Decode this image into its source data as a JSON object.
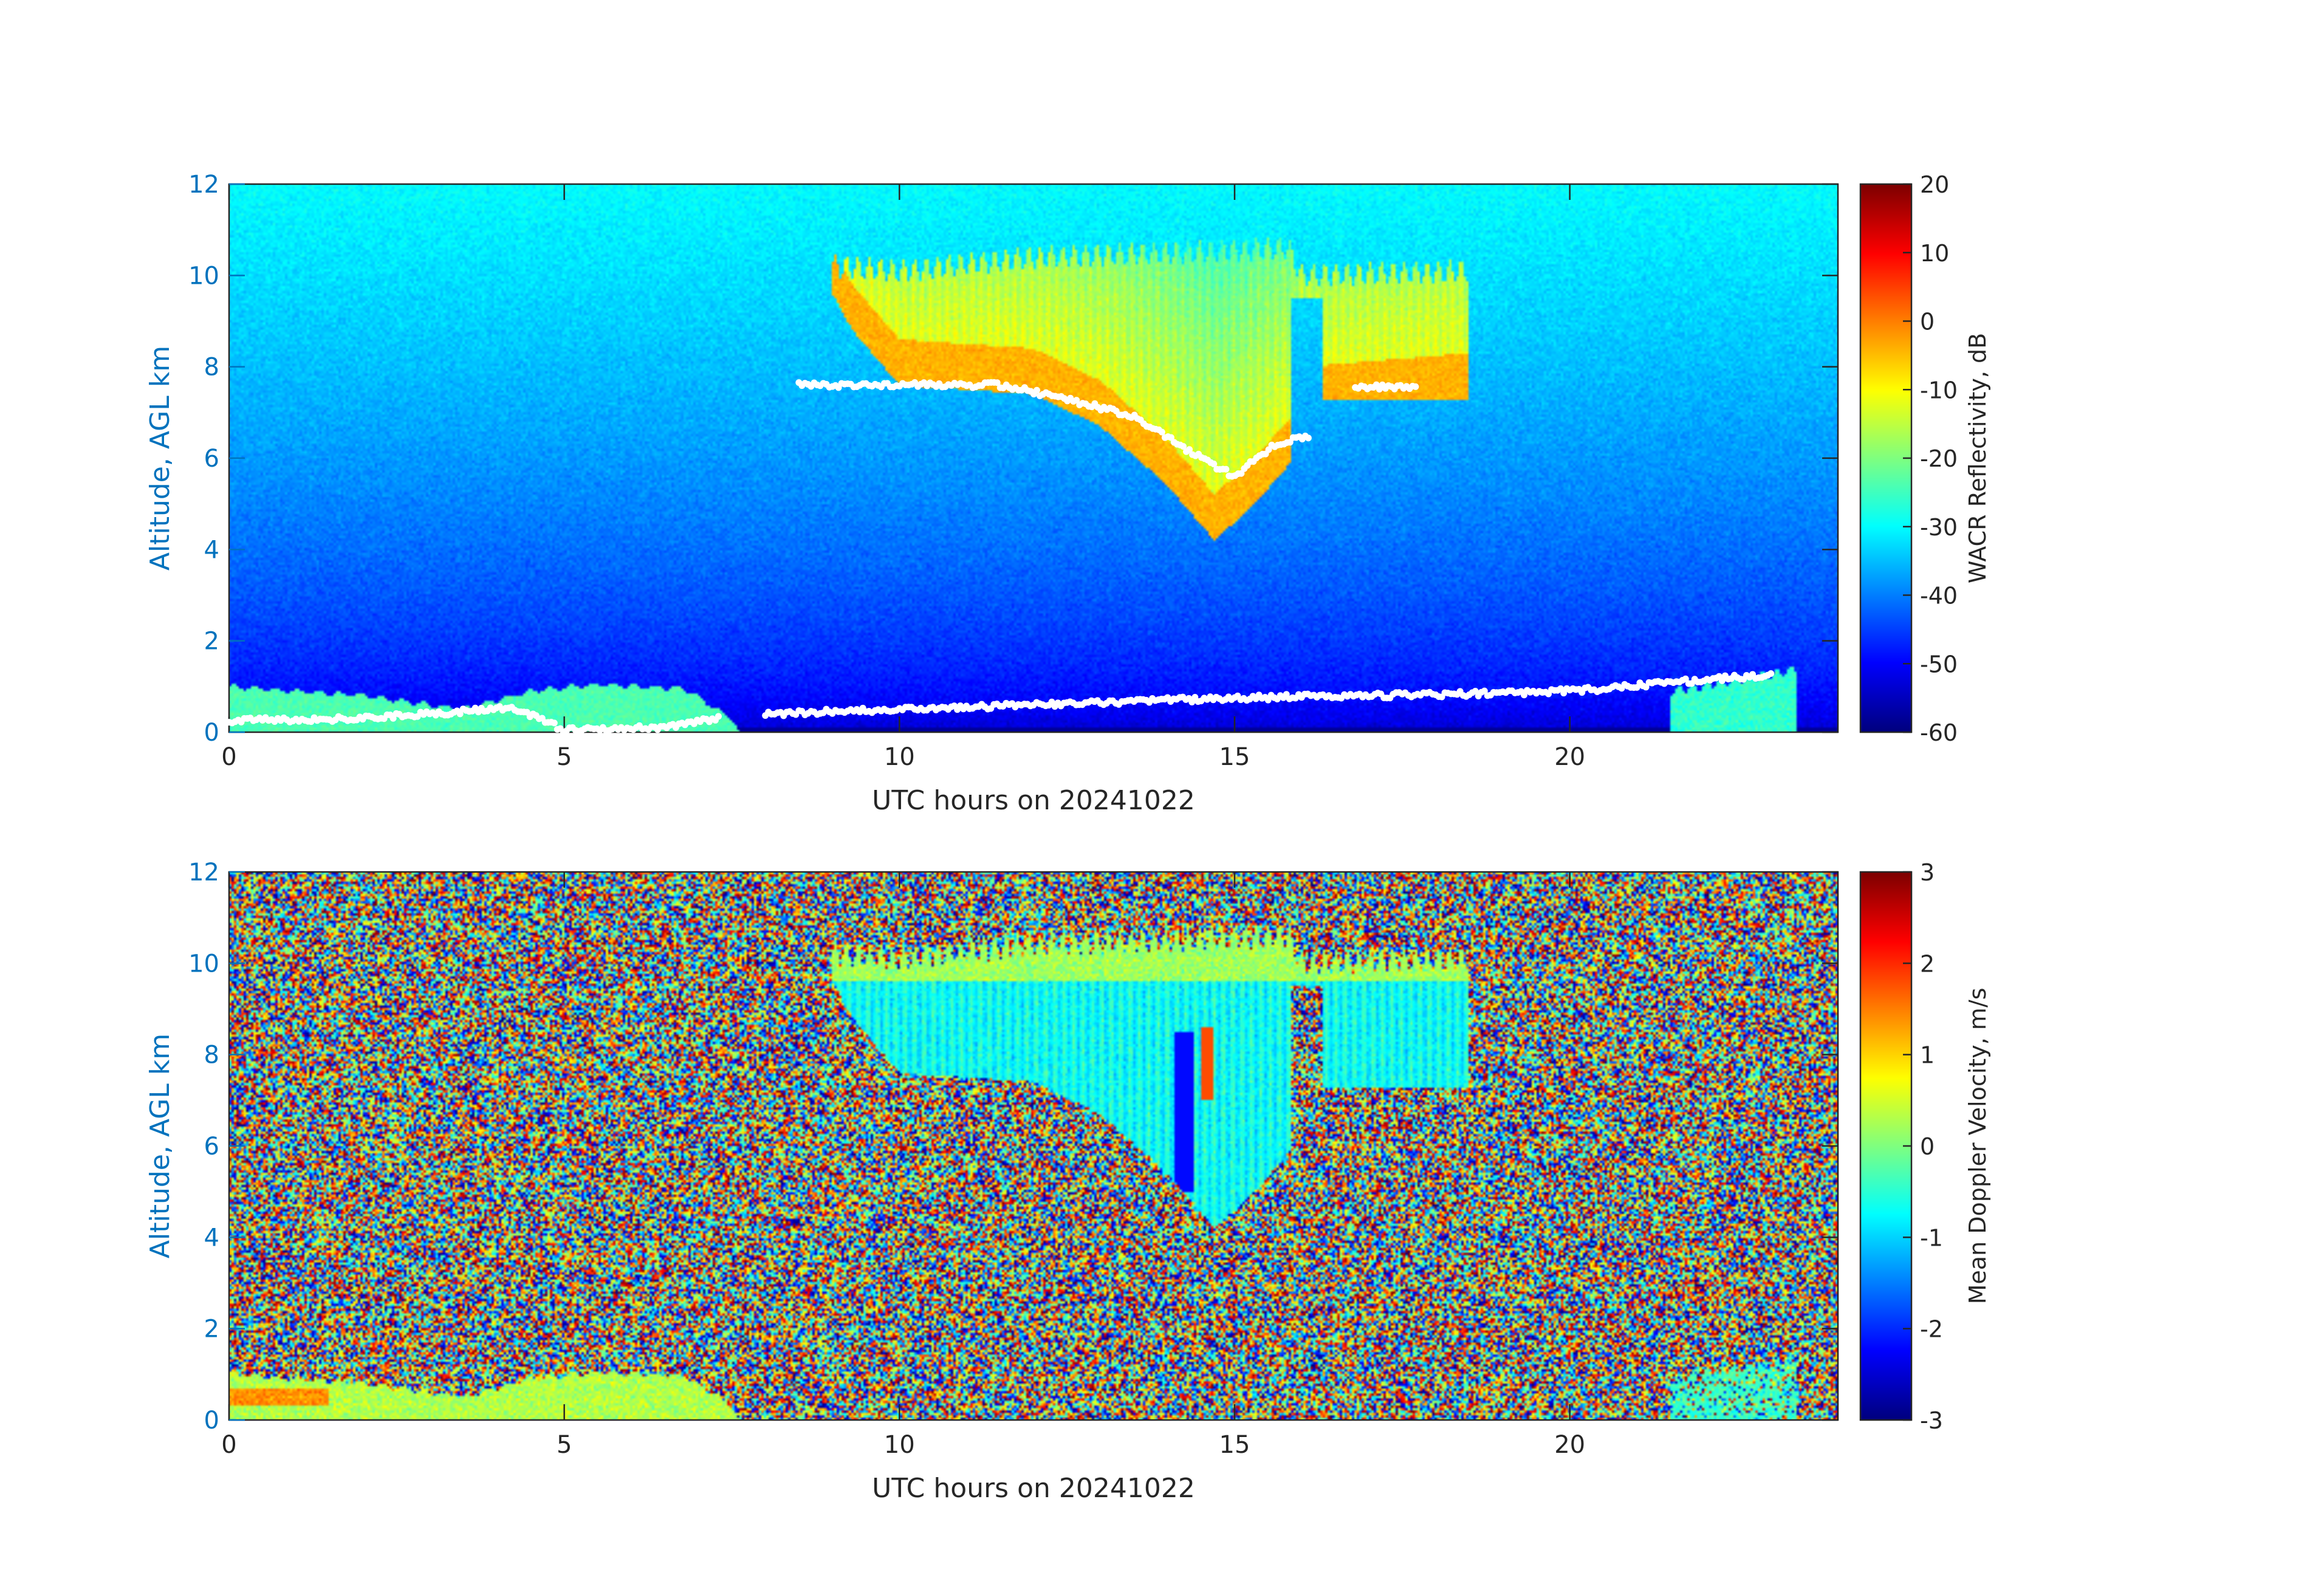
{
  "chart_data": [
    {
      "type": "heatmap",
      "title": "",
      "xlabel": "UTC hours on 20241022",
      "ylabel": "Altitude, AGL km",
      "xlim": [
        0,
        24
      ],
      "ylim": [
        0,
        12
      ],
      "xticks": [
        0,
        5,
        10,
        15,
        20
      ],
      "yticks": [
        0,
        2,
        4,
        6,
        8,
        10,
        12
      ],
      "colorbar": {
        "label": "WACR Reflectivity, dB",
        "range": [
          -60,
          20
        ],
        "ticks": [
          20,
          10,
          0,
          -10,
          -20,
          -30,
          -40,
          -50,
          -60
        ],
        "colormap": "jet"
      },
      "background_dB": {
        "near_surface": -55,
        "top": -30
      },
      "features": [
        {
          "name": "upper-level cloud",
          "x_range_hours": [
            9.0,
            18.5
          ],
          "top_km": 10.5,
          "base_km": 4.2,
          "base_time_hours": 14.7,
          "peak_dB": -2,
          "typical_dB": -12
        },
        {
          "name": "low-level echo",
          "x_range_hours": [
            0.0,
            7.5
          ],
          "top_km": 1.1,
          "typical_dB": -22
        },
        {
          "name": "surface clutter",
          "x_range_hours": [
            21.5,
            23.4
          ],
          "top_km": 1.4,
          "typical_dB": -25
        }
      ],
      "white_marker_traces": [
        {
          "points": [
            [
              0.0,
              0.25
            ],
            [
              2.0,
              0.3
            ],
            [
              3.5,
              0.45
            ],
            [
              4.2,
              0.55
            ],
            [
              5.0,
              0.05
            ],
            [
              6.5,
              0.1
            ],
            [
              7.3,
              0.3
            ]
          ]
        },
        {
          "points": [
            [
              8.5,
              7.6
            ],
            [
              9.2,
              7.6
            ],
            [
              10.3,
              7.6
            ],
            [
              11.5,
              7.6
            ],
            [
              12.5,
              7.3
            ],
            [
              13.5,
              6.9
            ],
            [
              14.5,
              6.0
            ],
            [
              15.0,
              5.6
            ],
            [
              15.6,
              6.3
            ],
            [
              16.1,
              6.5
            ]
          ]
        },
        {
          "points": [
            [
              16.8,
              7.55
            ],
            [
              17.7,
              7.55
            ]
          ]
        },
        {
          "points": [
            [
              8.0,
              0.4
            ],
            [
              10.0,
              0.5
            ],
            [
              13.0,
              0.65
            ],
            [
              15.0,
              0.75
            ],
            [
              17.0,
              0.8
            ],
            [
              19.0,
              0.85
            ],
            [
              20.5,
              0.95
            ],
            [
              22.0,
              1.15
            ],
            [
              23.0,
              1.25
            ]
          ]
        }
      ]
    },
    {
      "type": "heatmap",
      "title": "",
      "xlabel": "UTC hours on 20241022",
      "ylabel": "Altitude, AGL km",
      "xlim": [
        0,
        24
      ],
      "ylim": [
        0,
        12
      ],
      "xticks": [
        0,
        5,
        10,
        15,
        20
      ],
      "yticks": [
        0,
        2,
        4,
        6,
        8,
        10,
        12
      ],
      "colorbar": {
        "label": "Mean Doppler Velocity, m/s",
        "range": [
          -3,
          3
        ],
        "ticks": [
          3,
          2,
          1,
          0,
          -1,
          -2,
          -3
        ],
        "colormap": "jet"
      },
      "background": "random noise spanning full color range",
      "features": [
        {
          "name": "upper-level cloud",
          "x_range_hours": [
            9.0,
            18.5
          ],
          "top_km": 10.5,
          "base_km": 4.2,
          "typical_velocity": -0.6,
          "min_velocity": -2.4,
          "max_velocity": 2.0
        },
        {
          "name": "low-level echo",
          "x_range_hours": [
            0.0,
            7.5
          ],
          "top_km": 1.1,
          "typical_velocity": 0.3
        },
        {
          "name": "surface clutter",
          "x_range_hours": [
            21.5,
            23.4
          ],
          "top_km": 1.4,
          "typical_velocity": -0.3
        }
      ]
    }
  ]
}
